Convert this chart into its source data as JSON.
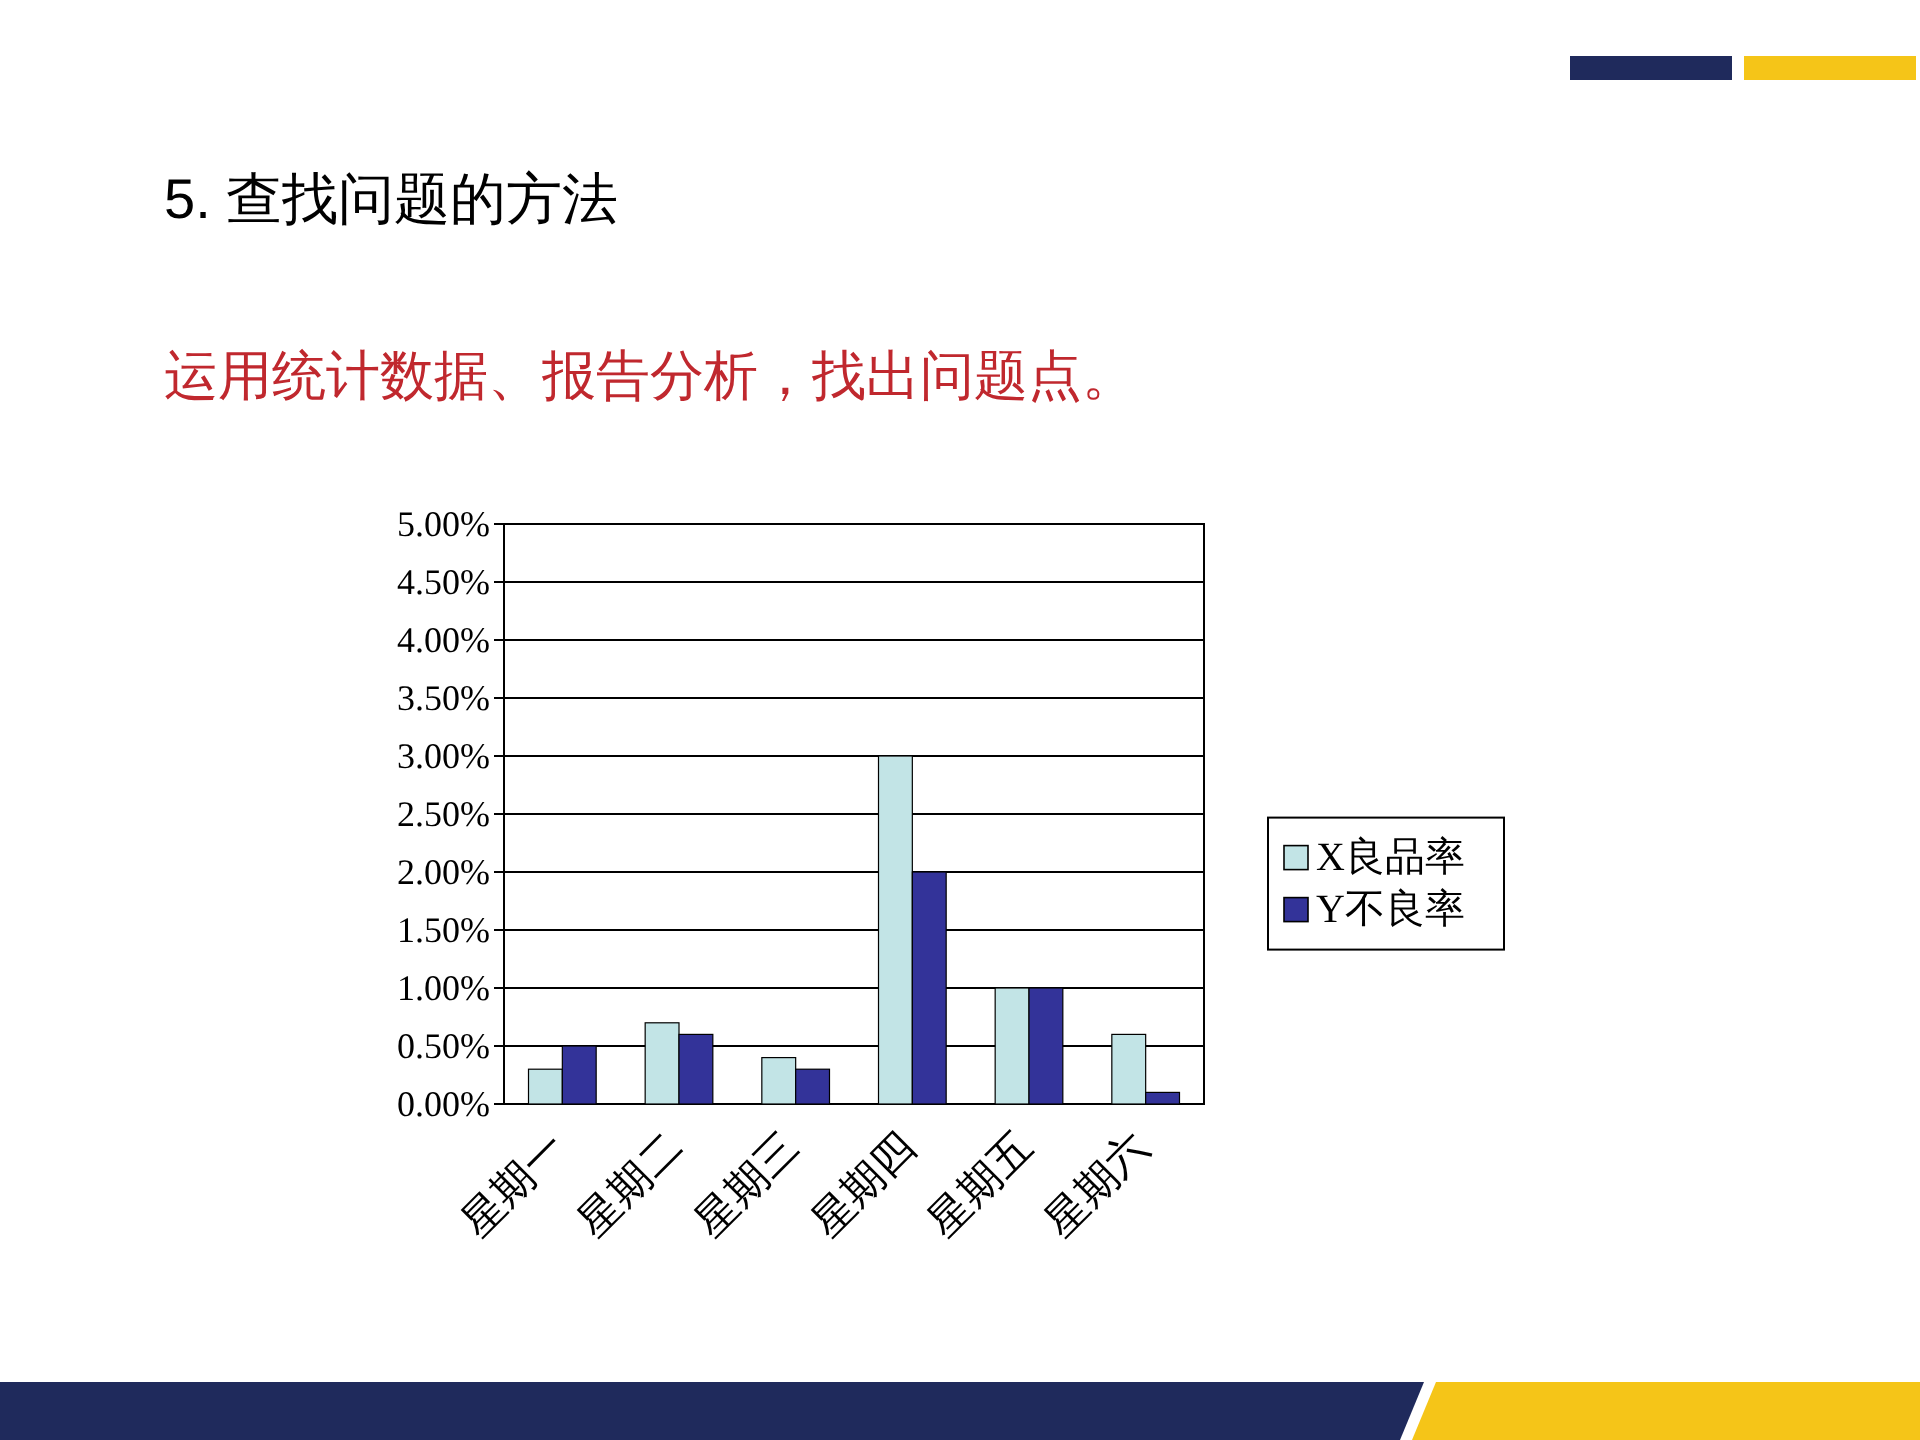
{
  "chart_data": {
    "type": "bar",
    "title": "5. 查找问题的方法",
    "subtitle": "运用统计数据、报告分析，找出问题点。",
    "categories": [
      "星期一",
      "星期二",
      "星期三",
      "星期四",
      "星期五",
      "星期六"
    ],
    "series": [
      {
        "name": "X良品率",
        "color": "#c2e4e6",
        "values": [
          0.3,
          0.7,
          0.4,
          3.0,
          1.0,
          0.6
        ]
      },
      {
        "name": "Y不良率",
        "color": "#333399",
        "values": [
          0.5,
          0.6,
          0.3,
          2.0,
          1.0,
          0.1
        ]
      }
    ],
    "ylim": [
      0,
      5
    ],
    "yticks": [
      {
        "value": 0,
        "label": "0.00%"
      },
      {
        "value": 0.5,
        "label": "0.50%"
      },
      {
        "value": 1,
        "label": "1.00%"
      },
      {
        "value": 1.5,
        "label": "1.50%"
      },
      {
        "value": 2,
        "label": "2.00%"
      },
      {
        "value": 2.5,
        "label": "2.50%"
      },
      {
        "value": 3,
        "label": "3.00%"
      },
      {
        "value": 3.5,
        "label": "3.50%"
      },
      {
        "value": 4,
        "label": "4.00%"
      },
      {
        "value": 4.5,
        "label": "4.50%"
      },
      {
        "value": 5,
        "label": "5.00%"
      }
    ],
    "grid": "y",
    "legend": "right"
  }
}
